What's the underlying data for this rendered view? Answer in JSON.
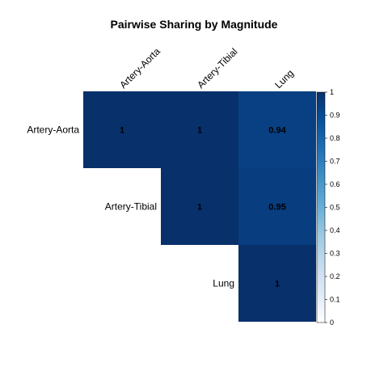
{
  "chart_data": {
    "type": "heatmap",
    "title": "Pairwise Sharing by Magnitude",
    "row_labels": [
      "Artery-Aorta",
      "Artery-Tibial",
      "Lung"
    ],
    "col_labels": [
      "Artery-Aorta",
      "Artery-Tibial",
      "Lung"
    ],
    "shape": "upper-triangle",
    "cells": [
      {
        "row": 0,
        "col": 0,
        "value": 1,
        "label": "1"
      },
      {
        "row": 0,
        "col": 1,
        "value": 1,
        "label": "1"
      },
      {
        "row": 0,
        "col": 2,
        "value": 0.94,
        "label": "0.94"
      },
      {
        "row": 1,
        "col": 1,
        "value": 1,
        "label": "1"
      },
      {
        "row": 1,
        "col": 2,
        "value": 0.95,
        "label": "0.95"
      },
      {
        "row": 2,
        "col": 2,
        "value": 1,
        "label": "1"
      }
    ],
    "colorbar": {
      "range": [
        0,
        1
      ],
      "ticks": [
        "0",
        "0.1",
        "0.2",
        "0.3",
        "0.4",
        "0.5",
        "0.6",
        "0.7",
        "0.8",
        "0.9",
        "1"
      ],
      "palette": [
        "#ffffff",
        "#deebf7",
        "#c6dbef",
        "#9ecae1",
        "#6baed6",
        "#4292c6",
        "#2171b5",
        "#08519c",
        "#08306b"
      ]
    }
  }
}
